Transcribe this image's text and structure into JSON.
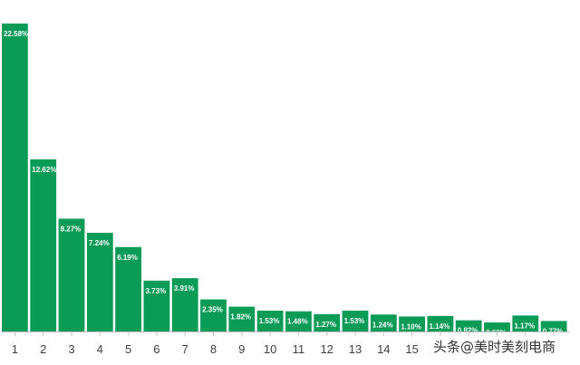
{
  "chart_data": {
    "type": "bar",
    "categories": [
      "1",
      "2",
      "3",
      "4",
      "5",
      "6",
      "7",
      "8",
      "9",
      "10",
      "11",
      "12",
      "13",
      "14",
      "15",
      "",
      "",
      "",
      "",
      ""
    ],
    "values": [
      22.58,
      12.62,
      8.27,
      7.24,
      6.19,
      3.73,
      3.91,
      2.35,
      1.82,
      1.53,
      1.48,
      1.27,
      1.53,
      1.24,
      1.1,
      1.14,
      0.82,
      0.66,
      1.17,
      0.77
    ],
    "data_labels": [
      "22.58%",
      "12.62%",
      "8.27%",
      "7.24%",
      "6.19%",
      "3.73%",
      "3.91%",
      "2.35%",
      "1.82%",
      "1.53%",
      "1.48%",
      "1.27%",
      "1.53%",
      "1.24%",
      "1.10%",
      "1.14%",
      "0.82%",
      "0.66%",
      "1.17%",
      "0.77%"
    ],
    "ylim": [
      0,
      22.58
    ],
    "title": "",
    "xlabel": "",
    "ylabel": "",
    "grid": false,
    "bar_color": "#0a9b57",
    "label_color": "#ffffff"
  },
  "watermark": "头条@美时美刻电商"
}
